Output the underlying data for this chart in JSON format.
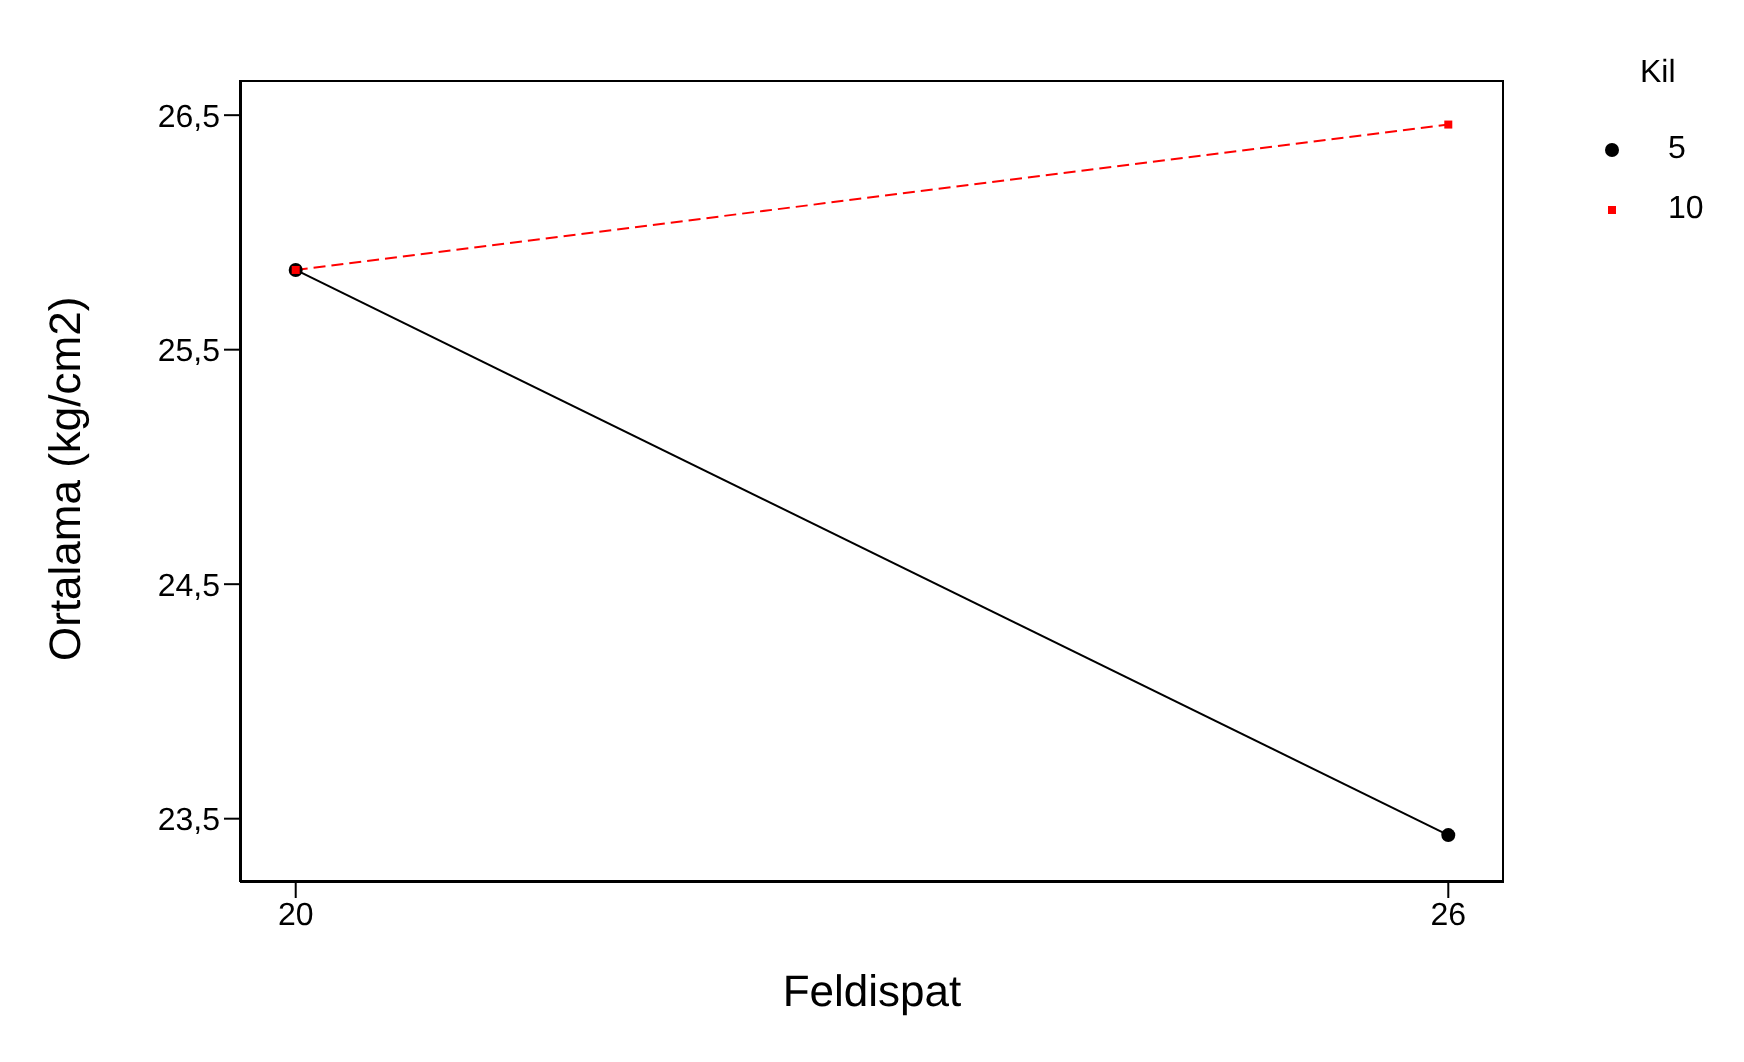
{
  "chart_data": {
    "type": "line",
    "xlabel": "Feldispat",
    "ylabel": "Ortalama (kg/cm2)",
    "legend_title": "Kil",
    "legend": "top right",
    "grid": false,
    "x": [
      20,
      26
    ],
    "series": [
      {
        "name": "5",
        "color": "#000000",
        "values": [
          25.84,
          23.43
        ],
        "marker": "circle",
        "line_style": "solid"
      },
      {
        "name": "10",
        "color": "#ff0000",
        "values": [
          25.84,
          26.46
        ],
        "marker": "square",
        "line_style": "dashed"
      }
    ],
    "xlim": [
      19.71,
      26.29
    ],
    "xticks": [
      20,
      26
    ],
    "ylim": [
      23.23,
      26.65
    ],
    "yticks": [
      {
        "value": 23.5,
        "label": "23,5"
      },
      {
        "value": 24.5,
        "label": "24,5"
      },
      {
        "value": 25.5,
        "label": "25,5"
      },
      {
        "value": 26.5,
        "label": "26,5"
      }
    ]
  }
}
